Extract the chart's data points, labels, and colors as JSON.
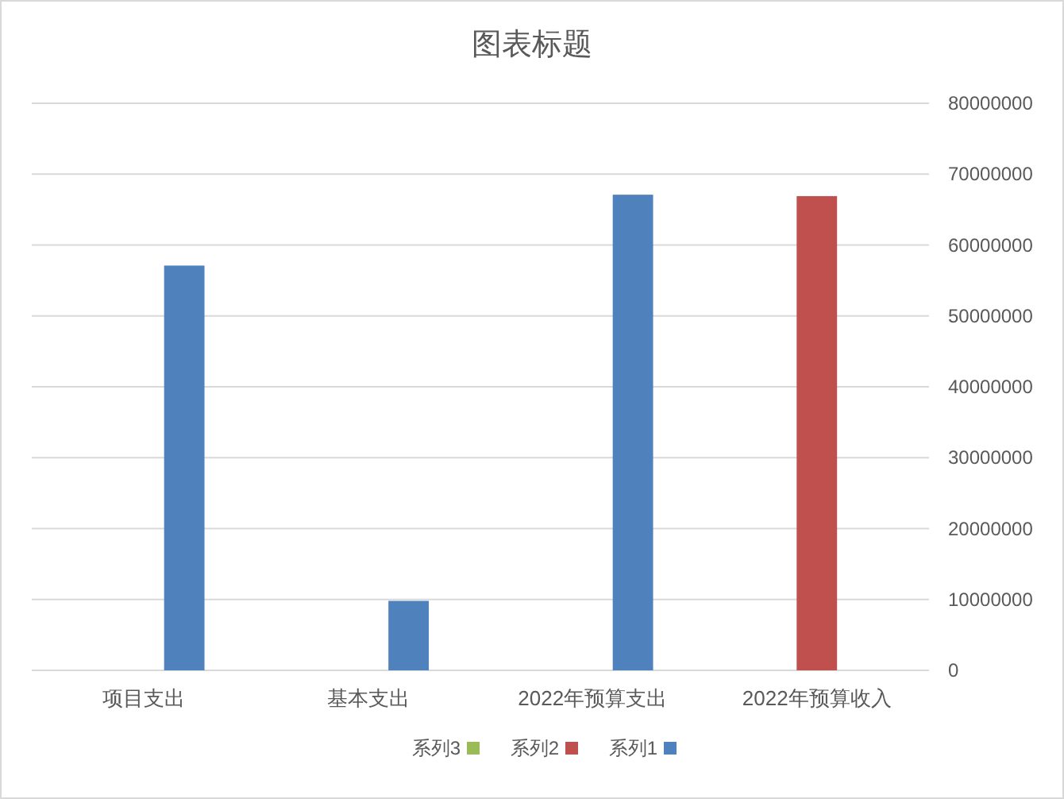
{
  "chart_data": {
    "type": "bar",
    "title": "图表标题",
    "categories": [
      "项目支出",
      "基本支出",
      "2022年预算支出",
      "2022年预算收入"
    ],
    "series": [
      {
        "name": "系列1",
        "color": "#4f81bd",
        "values": [
          57100000,
          9800000,
          67100000,
          null
        ]
      },
      {
        "name": "系列2",
        "color": "#c0504d",
        "values": [
          null,
          null,
          null,
          66900000
        ]
      },
      {
        "name": "系列3",
        "color": "#9bbb59",
        "values": [
          null,
          null,
          null,
          null
        ]
      }
    ],
    "ylim": [
      0,
      80000000
    ],
    "yticks": [
      0,
      10000000,
      20000000,
      30000000,
      40000000,
      50000000,
      60000000,
      70000000,
      80000000
    ],
    "grid": "y",
    "legend": "bottom"
  }
}
